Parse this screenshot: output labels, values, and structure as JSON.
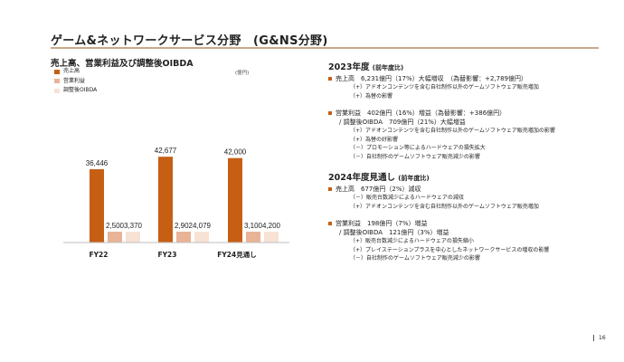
{
  "slide": {
    "title": "ゲーム&ネットワークサービス分野　(G&NS分野)",
    "page_number": "16"
  },
  "chart_panel": {
    "title": "売上高、営業利益及び調整後OIBDA",
    "unit": "(億円)",
    "legend": [
      {
        "label": "売上高",
        "color": "#c65f14"
      },
      {
        "label": "営業利益",
        "color": "#e8b396"
      },
      {
        "label": "調整後OIBDA",
        "color": "#f7e2d4"
      }
    ]
  },
  "chart_data": {
    "type": "bar",
    "categories": [
      "FY22",
      "FY23",
      "FY24見通し"
    ],
    "series": [
      {
        "name": "売上高",
        "values": [
          36446,
          42677,
          42000
        ],
        "labels": [
          "36,446",
          "42,677",
          "42,000"
        ]
      },
      {
        "name": "営業利益",
        "values": [
          2500,
          2902,
          3100
        ],
        "labels": [
          "2,500",
          "2,902",
          "3,100"
        ]
      },
      {
        "name": "調整後OIBDA",
        "values": [
          3370,
          4079,
          4200
        ],
        "labels": [
          "3,370",
          "4,079",
          "4,200"
        ]
      }
    ],
    "colors": [
      "#c65f14",
      "#e8b396",
      "#f7e2d4"
    ],
    "ylim": [
      0,
      45000
    ],
    "title": "売上高、営業利益及び調整後OIBDA",
    "xlabel": "",
    "ylabel": "",
    "grid": false
  },
  "fy23": {
    "heading": "2023年度",
    "heading_sub": "(前年度比)",
    "sales": {
      "text": "売上高　6,231億円（17%）大幅増収　（為替影響：+2,789億円）",
      "items": [
        "（+）アドオンコンテンツを含む自社制作以外のゲームソフトウェア販売増加",
        "（+）為替の影響"
      ]
    },
    "op": {
      "text": "営業利益　402億円（16%）増益（為替影響：+386億円）",
      "oibda": "/ 調整後OIBDA　709億円（21%）大幅増益",
      "items": [
        "（+）アドオンコンテンツを含む自社制作以外のゲームソフトウェア販売増加の影響",
        "（+）為替の好影響",
        "（－）プロモーション等によるハードウェアの損失拡大",
        "（－）自社制作のゲームソフトウェア販売減少の影響"
      ]
    }
  },
  "fy24": {
    "heading": "2024年度見通し",
    "heading_sub": "(前年度比)",
    "sales": {
      "text": "売上高　677億円（2%）減収",
      "items": [
        "（－）販売台数減少によるハードウェアの減収",
        "（+）アドオンコンテンツを含む自社制作以外のゲームソフトウェア販売増加"
      ]
    },
    "op": {
      "text": "営業利益　198億円（7%）増益",
      "oibda": "/ 調整後OIBDA　121億円（3%）増益",
      "items": [
        "（+）販売台数減少によるハードウェアの損失縮小",
        "（+）プレイステーションプラスを中心としたネットワークサービスの増収の影響",
        "（－）自社制作のゲームソフトウェア販売減少の影響"
      ]
    }
  }
}
